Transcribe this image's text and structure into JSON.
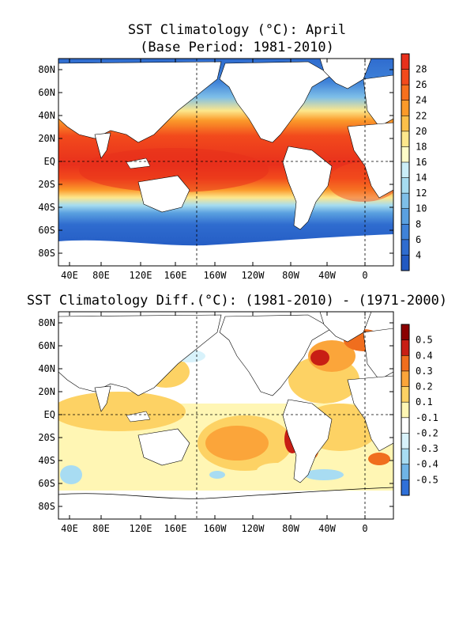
{
  "maps": [
    {
      "title": "SST Climatology (°C): April",
      "subtitle": "(Base Period: 1981-2010)",
      "lat_labels": [
        "80N",
        "60N",
        "40N",
        "20N",
        "EQ",
        "20S",
        "40S",
        "60S",
        "80S"
      ],
      "lon_labels": [
        "40E",
        "80E",
        "120E",
        "160E",
        "160W",
        "120W",
        "80W",
        "40W",
        "0"
      ],
      "colorbar": {
        "labels": [
          "28",
          "26",
          "24",
          "22",
          "20",
          "18",
          "16",
          "14",
          "12",
          "10",
          "8",
          "6",
          "4"
        ],
        "colors": [
          "#e8301c",
          "#f24a1c",
          "#f7701e",
          "#fb9a2a",
          "#fcc04a",
          "#fde78c",
          "#fefcc8",
          "#cbeef8",
          "#a6dcf0",
          "#7ebfe8",
          "#5aa0e0",
          "#3f82d8",
          "#2f6ccf",
          "#2259c2"
        ]
      }
    },
    {
      "title": "SST Climatology Diff.(°C): (1981-2010) - (1971-2000)",
      "lat_labels": [
        "80N",
        "60N",
        "40N",
        "20N",
        "EQ",
        "20S",
        "40S",
        "60S",
        "80S"
      ],
      "lon_labels": [
        "40E",
        "80E",
        "120E",
        "160E",
        "160W",
        "120W",
        "80W",
        "40W",
        "0"
      ],
      "colorbar": {
        "labels": [
          "0.5",
          "0.4",
          "0.3",
          "0.2",
          "0.1",
          "-0.1",
          "-0.2",
          "-0.3",
          "-0.4",
          "-0.5"
        ],
        "colors": [
          "#8b0000",
          "#c81e14",
          "#f06e1e",
          "#fba53a",
          "#fdd264",
          "#fff6b4",
          "#ffffff",
          "#d8f2fb",
          "#a8dcf2",
          "#6fb4e6",
          "#2f70d8"
        ]
      }
    }
  ]
}
